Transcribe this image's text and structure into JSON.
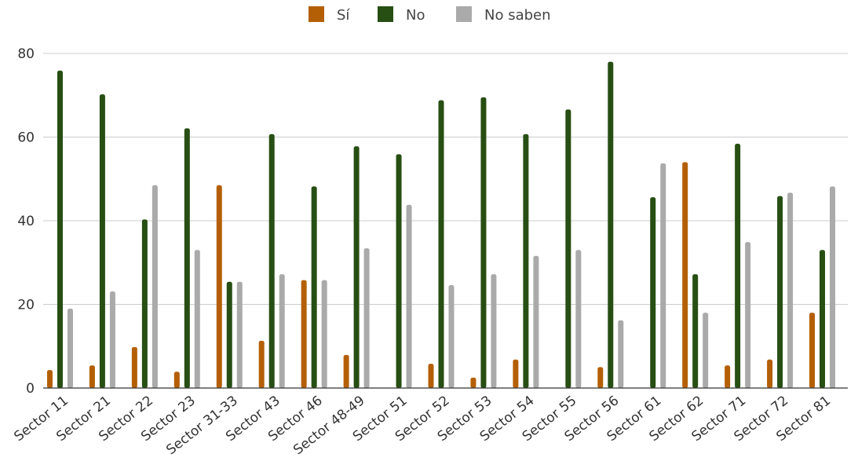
{
  "chart_data": {
    "type": "bar",
    "title": "",
    "xlabel": "",
    "ylabel": "",
    "ylim": [
      0,
      80
    ],
    "yticks": [
      0,
      20,
      40,
      60,
      80
    ],
    "grid": true,
    "legend_position": "top-center",
    "categories": [
      "Sector 11",
      "Sector 21",
      "Sector 22",
      "Sector 23",
      "Sector 31-33",
      "Sector 43",
      "Sector 46",
      "Sector 48-49",
      "Sector 51",
      "Sector 52",
      "Sector 53",
      "Sector 54",
      "Sector 55",
      "Sector 56",
      "Sector 61",
      "Sector 62",
      "Sector 71",
      "Sector 72",
      "Sector 81"
    ],
    "series": [
      {
        "name": "Sí",
        "color": "#b45f06",
        "values": [
          4.3,
          5.4,
          9.8,
          3.9,
          48.5,
          11.3,
          25.8,
          7.9,
          0,
          5.8,
          2.5,
          6.8,
          0,
          5.0,
          0,
          54.0,
          5.4,
          6.8,
          18.0
        ]
      },
      {
        "name": "No",
        "color": "#274e13",
        "values": [
          75.9,
          70.2,
          40.3,
          62.1,
          25.4,
          60.7,
          48.2,
          57.8,
          55.9,
          68.8,
          69.5,
          60.7,
          66.6,
          78.0,
          45.6,
          27.2,
          58.4,
          45.9,
          33.0
        ]
      },
      {
        "name": "No saben",
        "color": "#aaaaaa",
        "values": [
          19.0,
          23.1,
          48.5,
          33.0,
          25.4,
          27.2,
          25.8,
          33.4,
          43.8,
          24.6,
          27.2,
          31.6,
          33.0,
          16.2,
          53.7,
          18.0,
          34.9,
          46.7,
          48.2
        ]
      }
    ]
  }
}
